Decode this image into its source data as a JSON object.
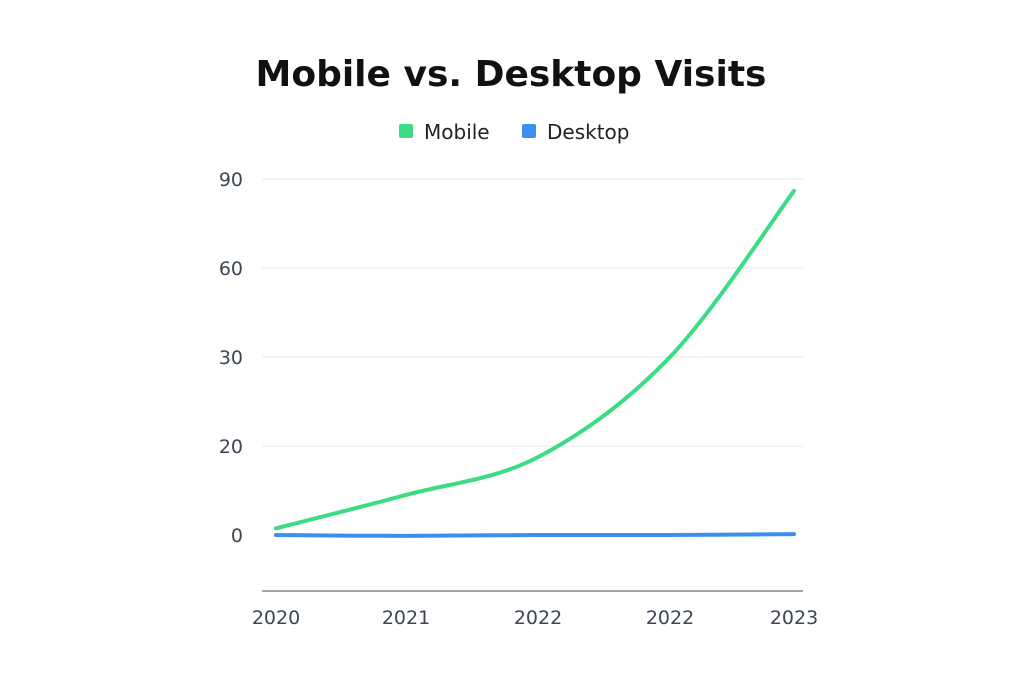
{
  "chart_data": {
    "type": "line",
    "title": "Mobile vs. Desktop Visits",
    "xlabel": "",
    "ylabel": "",
    "x_tick_labels": [
      "2020",
      "2021",
      "2022",
      "2022",
      "2023"
    ],
    "y_tick_labels": [
      "0",
      "20",
      "30",
      "60",
      "90"
    ],
    "y_axis_scale": "uneven ticks, equally spaced (0, 20, 30, 60, 90)",
    "grid": "horizontal",
    "legend_position": "top-center",
    "series": [
      {
        "name": "Mobile",
        "color": "#3ddc84",
        "values": [
          1.5,
          9,
          17.5,
          30,
          86
        ]
      },
      {
        "name": "Desktop",
        "color": "#3b8ff0",
        "values": [
          0,
          -0.2,
          0,
          0,
          0.2
        ]
      }
    ]
  }
}
